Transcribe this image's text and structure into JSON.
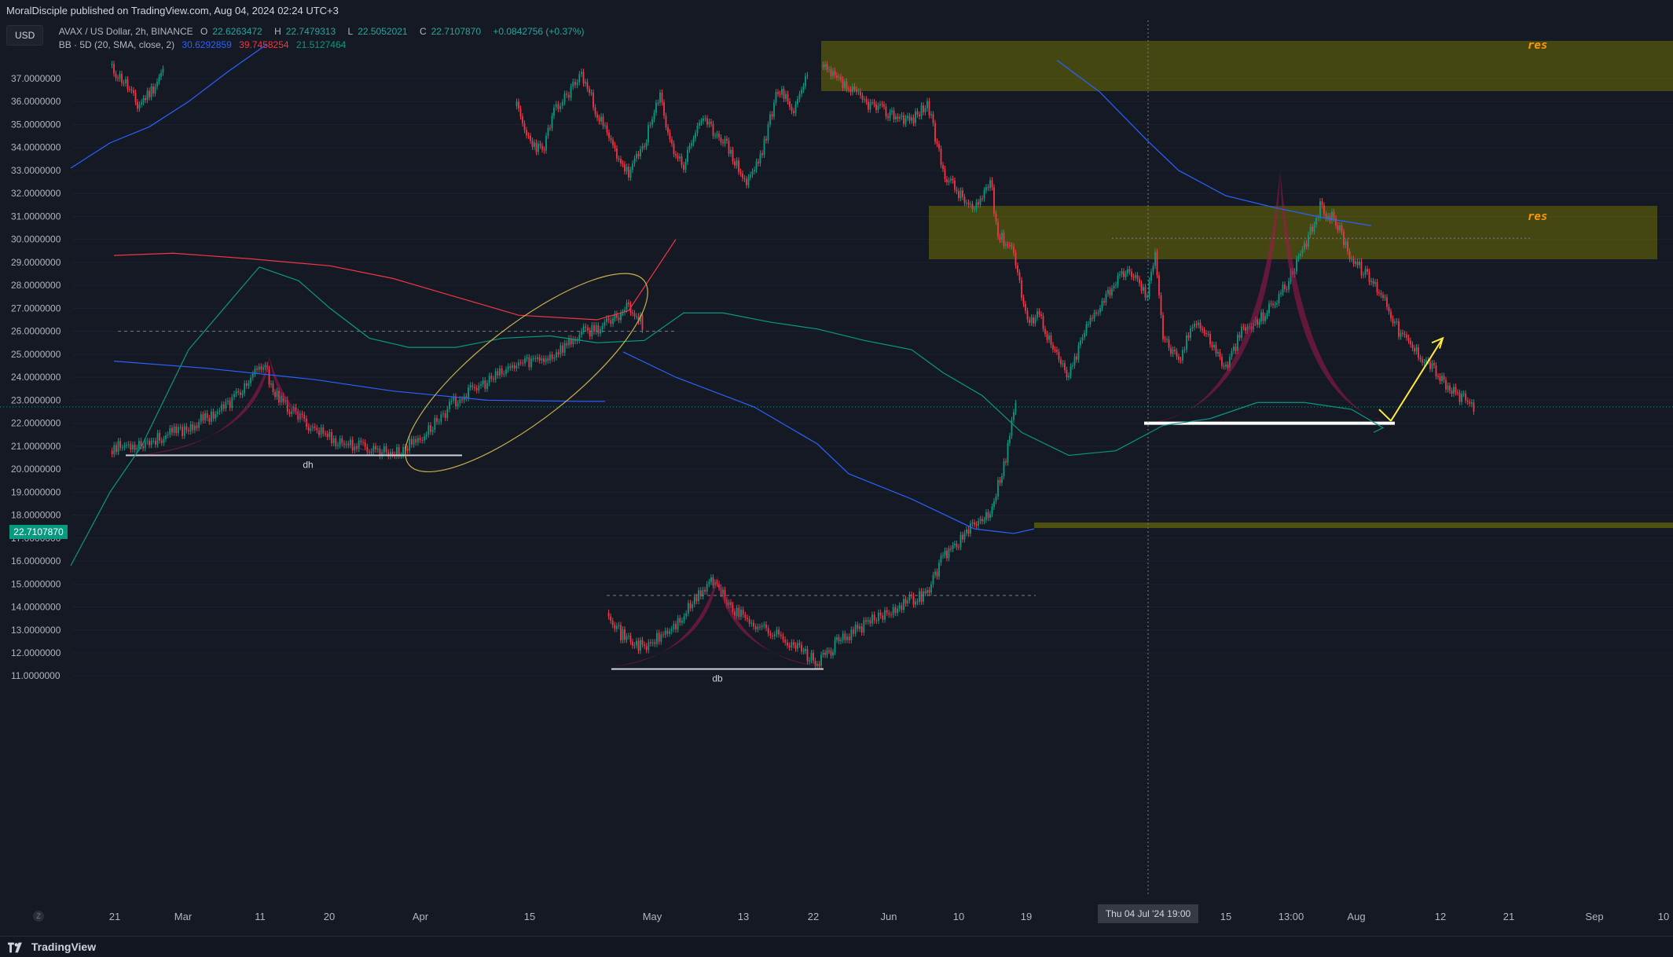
{
  "header": {
    "published_text": "MoralDisciple published on TradingView.com, Aug 04, 2024 02:24 UTC+3"
  },
  "legend": {
    "currency": "USD",
    "symbol": "AVAX / US Dollar, 2h, BINANCE",
    "open_label": "O",
    "open": "22.6263472",
    "high_label": "H",
    "high": "22.7479313",
    "low_label": "L",
    "low": "22.5052021",
    "close_label": "C",
    "close": "22.7107870",
    "change": "+0.0842756 (+0.37%)",
    "indicator": "BB · 5D (20, SMA, close, 2)",
    "bb_basis": "30.6292859",
    "bb_upper": "39.7458254",
    "bb_lower": "21.5127464"
  },
  "price_axis": {
    "ticks": [
      "37.0000000",
      "36.0000000",
      "35.0000000",
      "34.0000000",
      "33.0000000",
      "32.0000000",
      "31.0000000",
      "30.0000000",
      "29.0000000",
      "28.0000000",
      "27.0000000",
      "26.0000000",
      "25.0000000",
      "24.0000000",
      "23.0000000",
      "22.0000000",
      "21.0000000",
      "20.0000000",
      "19.0000000",
      "18.0000000",
      "17.0000000",
      "16.0000000",
      "15.0000000",
      "14.0000000",
      "13.0000000",
      "12.0000000",
      "11.0000000"
    ],
    "current_price": "22.7107870"
  },
  "time_axis": {
    "labels": [
      "21",
      "Mar",
      "11",
      "20",
      "Apr",
      "15",
      "May",
      "13",
      "22",
      "Jun",
      "10",
      "19",
      "15",
      "13:00",
      "Aug",
      "12",
      "21",
      "Sep",
      "10"
    ],
    "crosshair": "Thu 04 Jul '24   19:00",
    "scale_button": "Z"
  },
  "annotations": {
    "res_top": "res",
    "res_mid": "res",
    "pattern_label_1": "dh",
    "pattern_label_2": "db"
  },
  "footer": {
    "brand": "TradingView"
  },
  "colors": {
    "background": "#151924",
    "bull": "#089981",
    "bear": "#f23645",
    "zone_fill": "#808000",
    "highlight_fill": "#a0174a",
    "yellow_arrow": "#ffeb3b",
    "bb_basis": "#2962ff",
    "bb_upper": "#f23645",
    "bb_lower": "#089981"
  }
}
